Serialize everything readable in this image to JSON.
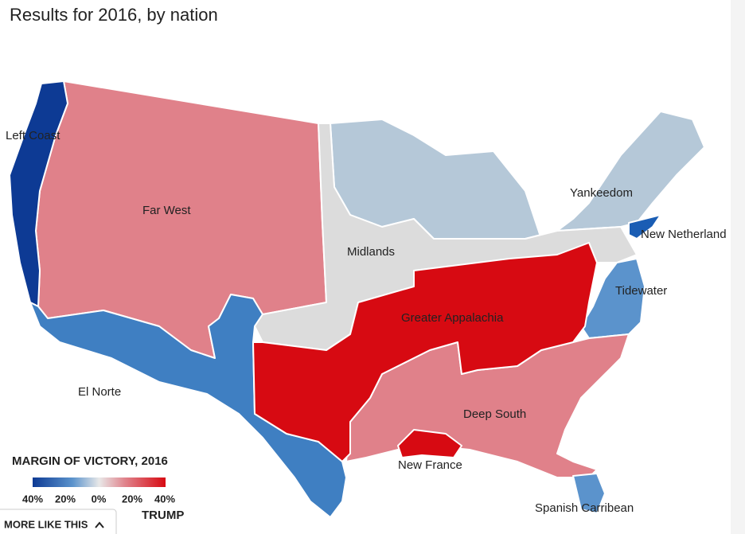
{
  "title": "Results for 2016, by nation",
  "regions": [
    {
      "label": "Left Coast"
    },
    {
      "label": "Far West"
    },
    {
      "label": "Yankeedom"
    },
    {
      "label": "New Netherland"
    },
    {
      "label": "Midlands"
    },
    {
      "label": "Tidewater"
    },
    {
      "label": "Greater Appalachia"
    },
    {
      "label": "El Norte"
    },
    {
      "label": "Deep South"
    },
    {
      "label": "New France"
    },
    {
      "label": "Spanish Carribean"
    }
  ],
  "legend": {
    "title": "MARGIN OF VICTORY, 2016",
    "ticks": [
      "40%",
      "20%",
      "0%",
      "20%",
      "40%"
    ],
    "candidate": "TRUMP"
  },
  "more_button": "MORE LIKE THIS"
}
